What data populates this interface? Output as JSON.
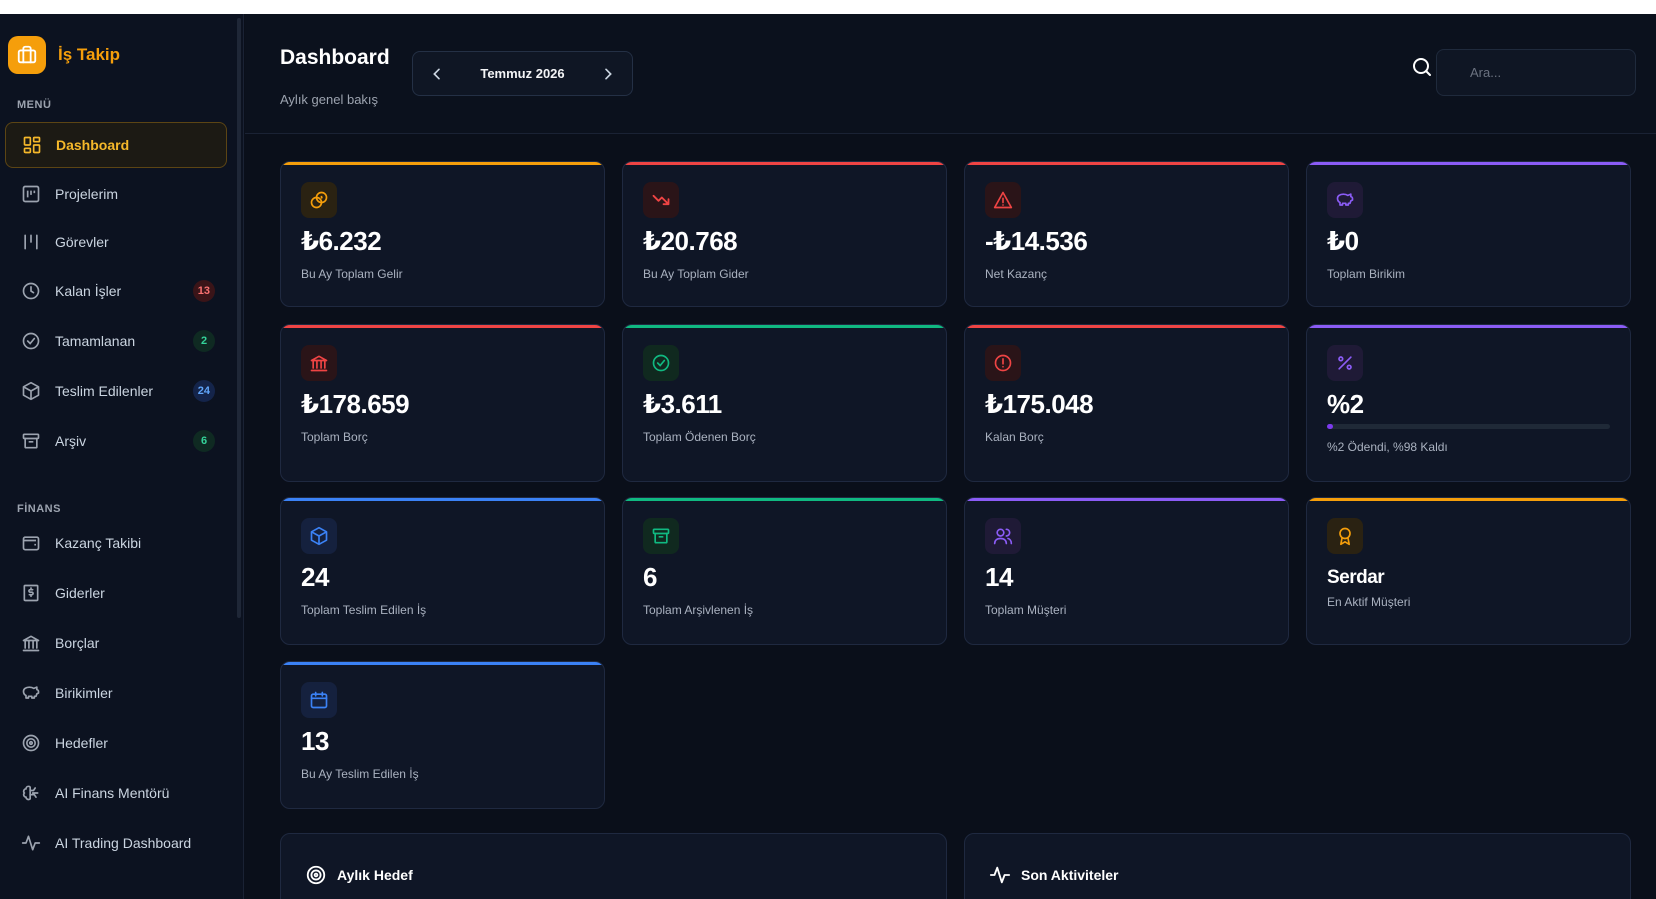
{
  "app": {
    "name": "İş Takip",
    "logo_icon": "briefcase-icon",
    "accent": "#f59e0b"
  },
  "sidebar": {
    "sections": [
      {
        "label": "MENÜ",
        "items": [
          {
            "label": "Dashboard",
            "icon": "grid-icon",
            "active": true
          },
          {
            "label": "Projelerim",
            "icon": "kanban-icon"
          },
          {
            "label": "Görevler",
            "icon": "columns-icon"
          },
          {
            "label": "Kalan İşler",
            "icon": "clock-icon",
            "badge": "13",
            "badge_color": "red"
          },
          {
            "label": "Tamamlanan",
            "icon": "check-circle-icon",
            "badge": "2",
            "badge_color": "green"
          },
          {
            "label": "Teslim Edilenler",
            "icon": "box-icon",
            "badge": "24",
            "badge_color": "blue"
          },
          {
            "label": "Arşiv",
            "icon": "archive-icon",
            "badge": "6",
            "badge_color": "green"
          }
        ]
      },
      {
        "label": "FİNANS",
        "items": [
          {
            "label": "Kazanç Takibi",
            "icon": "wallet-icon"
          },
          {
            "label": "Giderler",
            "icon": "receipt-icon"
          },
          {
            "label": "Borçlar",
            "icon": "bank-icon"
          },
          {
            "label": "Birikimler",
            "icon": "piggy-bank-icon"
          },
          {
            "label": "Hedefler",
            "icon": "target-icon"
          },
          {
            "label": "AI Finans Mentörü",
            "icon": "brain-icon"
          },
          {
            "label": "AI Trading Dashboard",
            "icon": "activity-icon"
          }
        ]
      }
    ]
  },
  "header": {
    "title": "Dashboard",
    "subtitle": "Aylık genel bakış",
    "month": "Temmuz 2026",
    "search_placeholder": "Ara..."
  },
  "cards": [
    {
      "value": "₺6.232",
      "label": "Bu Ay Toplam Gelir",
      "icon": "coins-icon",
      "color": "#f59e0b"
    },
    {
      "value": "₺20.768",
      "label": "Bu Ay Toplam Gider",
      "icon": "trending-down-icon",
      "color": "#ef4444"
    },
    {
      "value": "-₺14.536",
      "label": "Net Kazanç",
      "icon": "alert-triangle-icon",
      "color": "#ef4444"
    },
    {
      "value": "₺0",
      "label": "Toplam Birikim",
      "icon": "piggy-bank-icon",
      "color": "#8b5cf6"
    },
    {
      "value": "₺178.659",
      "label": "Toplam Borç",
      "icon": "bank-icon",
      "color": "#ef4444"
    },
    {
      "value": "₺3.611",
      "label": "Toplam Ödenen Borç",
      "icon": "check-circle-icon",
      "color": "#10b981"
    },
    {
      "value": "₺175.048",
      "label": "Kalan Borç",
      "icon": "alert-circle-icon",
      "color": "#ef4444"
    },
    {
      "value": "%2",
      "label": "%2 Ödendi, %98 Kaldı",
      "icon": "percent-icon",
      "color": "#8b5cf6",
      "progress": 0.02
    },
    {
      "value": "24",
      "label": "Toplam Teslim Edilen İş",
      "icon": "box-icon",
      "color": "#3b82f6"
    },
    {
      "value": "6",
      "label": "Toplam Arşivlenen İş",
      "icon": "archive-icon",
      "color": "#10b981"
    },
    {
      "value": "14",
      "label": "Toplam Müşteri",
      "icon": "users-icon",
      "color": "#8b5cf6"
    },
    {
      "value": "Serdar",
      "label": "En Aktif Müşteri",
      "icon": "award-icon",
      "color": "#f59e0b"
    },
    {
      "value": "13",
      "label": "Bu Ay Teslim Edilen İş",
      "icon": "calendar-icon",
      "color": "#3b82f6"
    }
  ],
  "panels": [
    {
      "title": "Aylık Hedef",
      "icon": "target-icon"
    },
    {
      "title": "Son Aktiviteler",
      "icon": "activity-icon"
    }
  ]
}
